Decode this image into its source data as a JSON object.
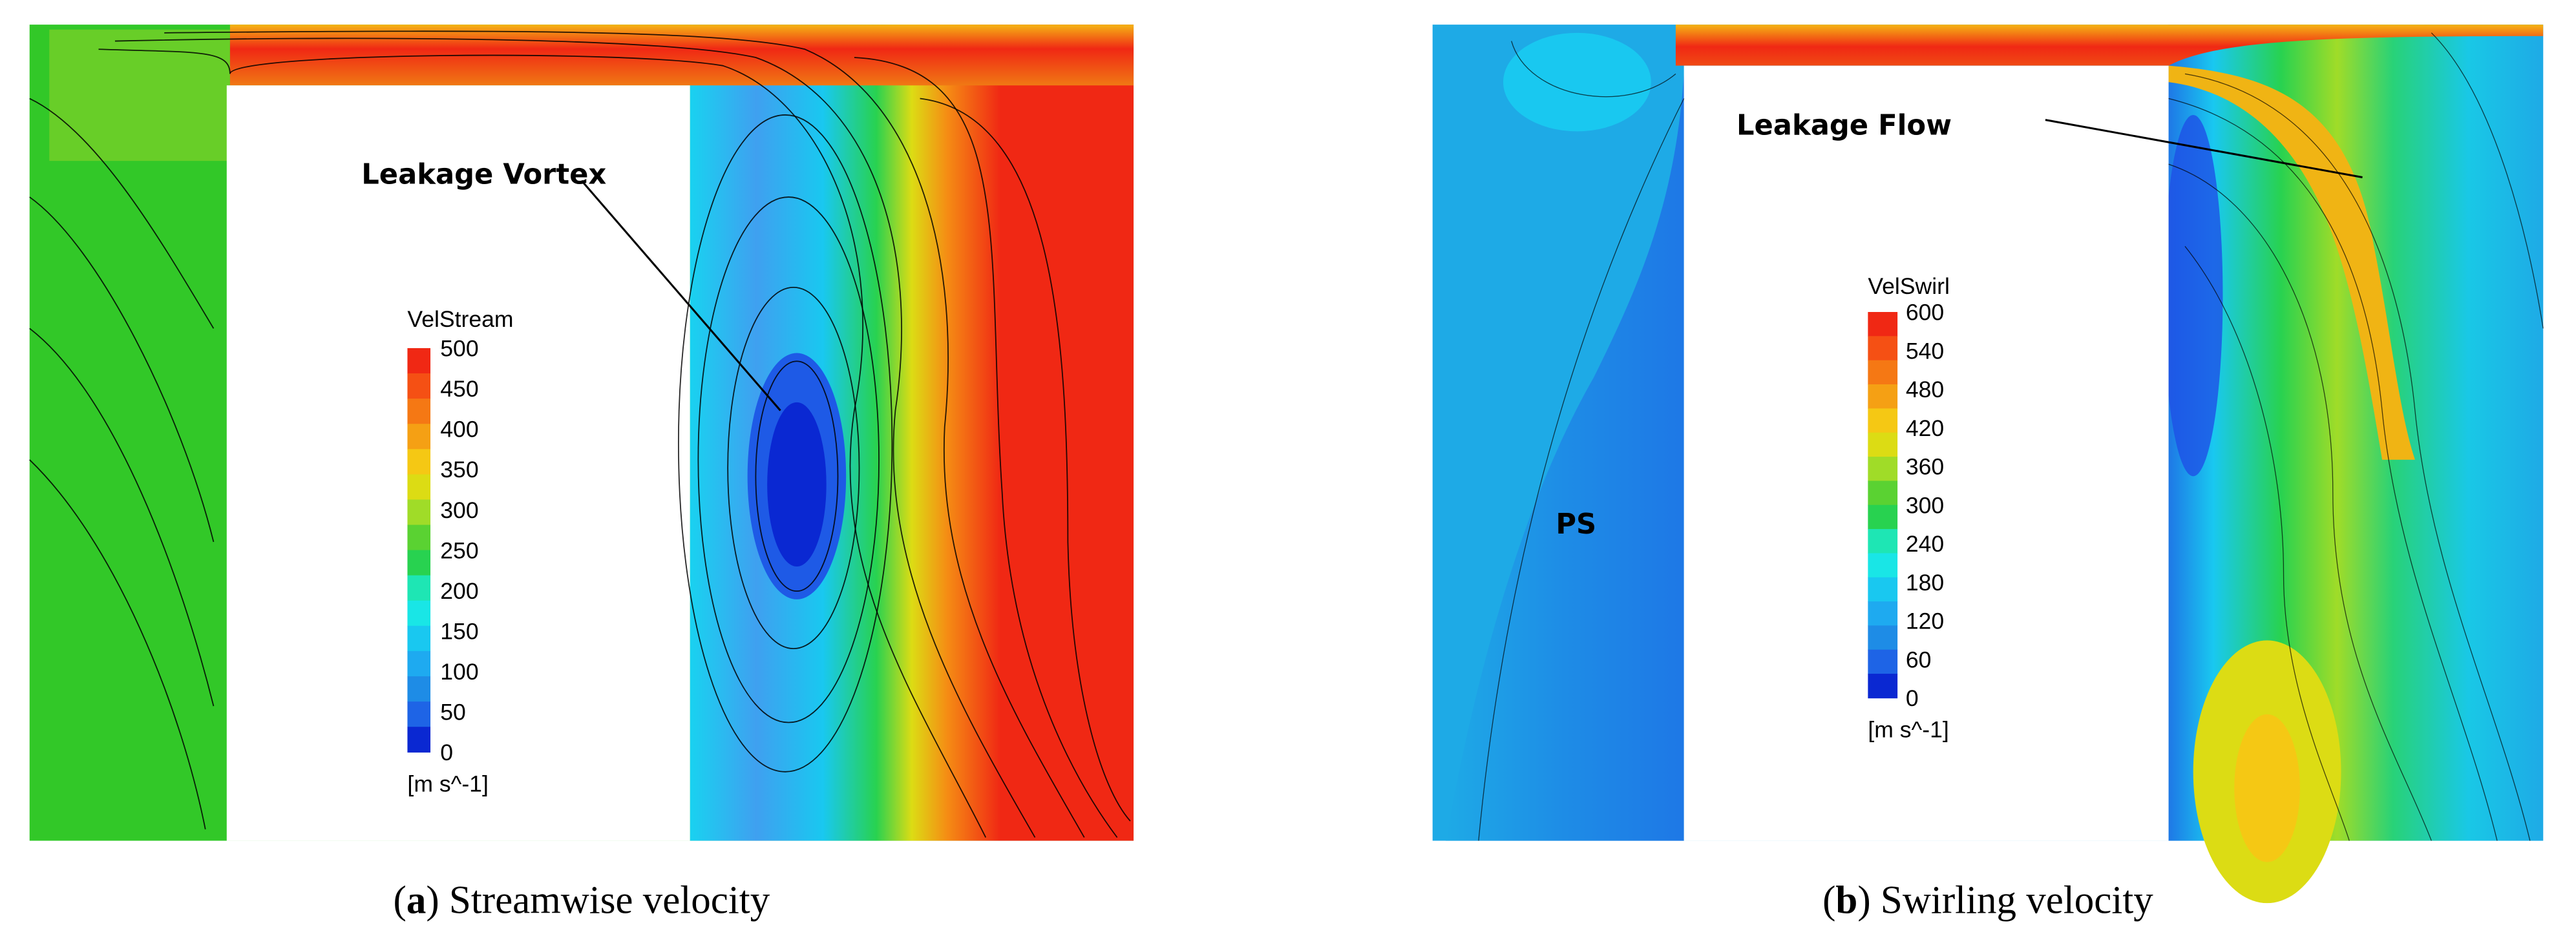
{
  "panels": [
    {
      "legend": {
        "title": "VelStream",
        "ticks": [
          500,
          450,
          400,
          350,
          300,
          250,
          200,
          150,
          100,
          50,
          0
        ],
        "unit": "[m s^-1]"
      },
      "annotations": [
        "Leakage Vortex"
      ],
      "caption": [
        "(",
        "a",
        ") Streamwise velocity"
      ]
    },
    {
      "legend": {
        "title": "VelSwirl",
        "ticks": [
          600,
          540,
          480,
          420,
          360,
          300,
          240,
          180,
          120,
          60,
          0
        ],
        "unit": "[m s^-1]"
      },
      "annotations": [
        "Leakage Flow",
        "PS"
      ],
      "caption": [
        "(",
        "b",
        ") Swirling velocity"
      ]
    }
  ]
}
